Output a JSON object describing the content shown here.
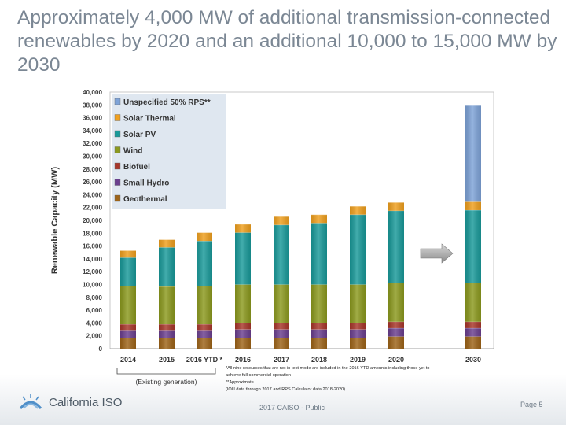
{
  "slide": {
    "title": "Approximately 4,000 MW of additional transmission-connected renewables by 2020 and an additional 10,000 to 15,000 MW by 2030",
    "footer_center": "2017 CAISO - Public",
    "footer_right": "Page 5",
    "logo_text": "California ISO",
    "notes": [
      "*All nine resources that are not in test mode are included in the 2016 YTD amounts including those yet to",
      "achieve full commercial operation",
      "**Approximate",
      "(IOU data through 2017 and RPS Calculator data 2018-2020)"
    ]
  },
  "chart_data": {
    "type": "bar",
    "stacked": true,
    "ylabel": "Renewable Capacity (MW)",
    "ylim": [
      0,
      40000
    ],
    "ytick_step": 2000,
    "categories": [
      "2014",
      "2015",
      "2016 YTD *",
      "2016",
      "2017",
      "2018",
      "2019",
      "2020",
      "2030"
    ],
    "bracket_label": "(Existing generation)",
    "bracket_span": [
      "2014",
      "2016 YTD *"
    ],
    "arrow_annotation": {
      "from_after": "2020",
      "to_before": "2030"
    },
    "series": [
      {
        "name": "Geothermal",
        "color": "#9e6418",
        "values": [
          1700,
          1700,
          1700,
          1700,
          1700,
          1700,
          1700,
          1900,
          1900
        ]
      },
      {
        "name": "Small Hydro",
        "color": "#6b3f8f",
        "values": [
          1200,
          1200,
          1200,
          1300,
          1300,
          1300,
          1300,
          1300,
          1300
        ]
      },
      {
        "name": "Biofuel",
        "color": "#a8362a",
        "values": [
          900,
          900,
          900,
          1000,
          1000,
          1000,
          1000,
          1000,
          1000
        ]
      },
      {
        "name": "Wind",
        "color": "#8c9a1e",
        "values": [
          6000,
          5900,
          6000,
          6000,
          6000,
          6000,
          6000,
          6100,
          6100
        ]
      },
      {
        "name": "Solar PV",
        "color": "#199a9a",
        "values": [
          4400,
          6100,
          7000,
          8100,
          9300,
          9600,
          10900,
          11200,
          11300
        ]
      },
      {
        "name": "Solar Thermal",
        "color": "#f0a01e",
        "values": [
          1100,
          1200,
          1300,
          1300,
          1300,
          1300,
          1300,
          1300,
          1300
        ]
      },
      {
        "name": "Unspecified 50% RPS**",
        "color": "#7ea3d8",
        "values": [
          0,
          0,
          0,
          0,
          0,
          0,
          0,
          0,
          15000
        ]
      }
    ],
    "legend_order": [
      "Unspecified 50% RPS**",
      "Solar Thermal",
      "Solar PV",
      "Wind",
      "Biofuel",
      "Small Hydro",
      "Geothermal"
    ],
    "legend_position": "top-left",
    "grid": false
  }
}
